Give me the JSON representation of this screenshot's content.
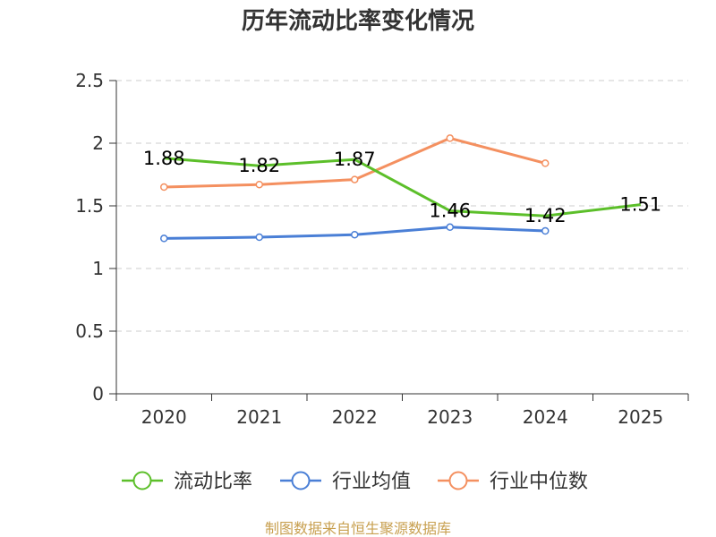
{
  "chart_data": {
    "type": "line",
    "title": "历年流动比率变化情况",
    "categories": [
      "2020",
      "2021",
      "2022",
      "2023",
      "2024",
      "2025"
    ],
    "y_ticks": [
      "0",
      "0.5",
      "1",
      "1.5",
      "2",
      "2.5"
    ],
    "ylim": [
      0,
      2.5
    ],
    "grid": true,
    "legend_position": "bottom",
    "series": [
      {
        "name": "流动比率",
        "color": "#5cbf2a",
        "values": [
          1.88,
          1.82,
          1.87,
          1.46,
          1.42,
          1.51
        ],
        "labels": [
          "1.88",
          "1.82",
          "1.87",
          "1.46",
          "1.42",
          "1.51"
        ],
        "show_markers": false
      },
      {
        "name": "行业均值",
        "color": "#4a7fd6",
        "values": [
          1.24,
          1.25,
          1.27,
          1.33,
          1.3,
          null
        ],
        "show_markers": true
      },
      {
        "name": "行业中位数",
        "color": "#f49060",
        "values": [
          1.65,
          1.67,
          1.71,
          2.04,
          1.84,
          null
        ],
        "show_markers": true
      }
    ]
  },
  "source_text": "制图数据来自恒生聚源数据库"
}
